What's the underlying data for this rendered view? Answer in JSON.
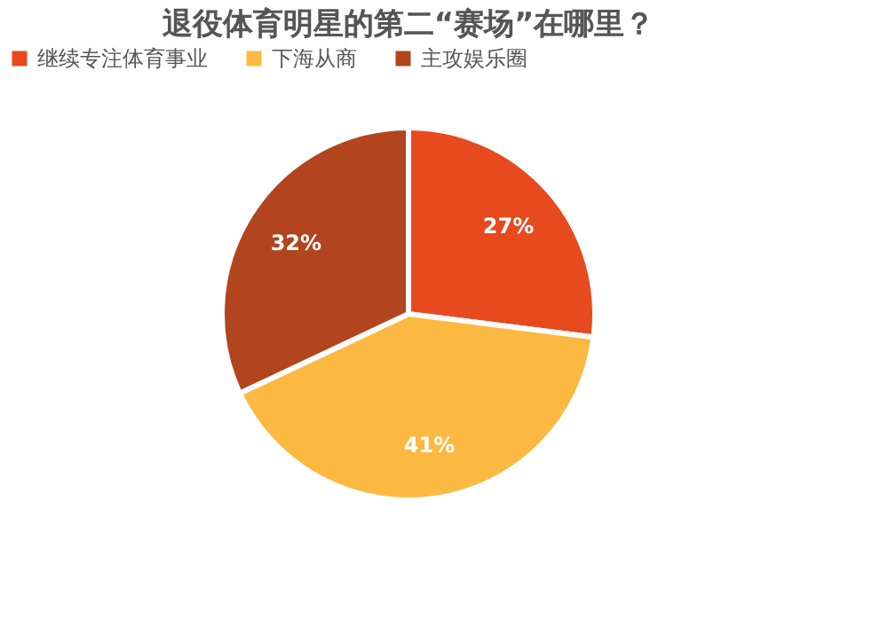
{
  "chart_data": {
    "type": "pie",
    "title": "退役体育明星的第二“赛场”在哪里？",
    "categories": [
      "继续专注体育事业",
      "下海从商",
      "主攻娱乐圈"
    ],
    "values": [
      27,
      41,
      32
    ],
    "colors": [
      "#e64a1e",
      "#fcb942",
      "#b2441e"
    ],
    "value_labels": [
      "27%",
      "41%",
      "32%"
    ],
    "legend": "top"
  }
}
